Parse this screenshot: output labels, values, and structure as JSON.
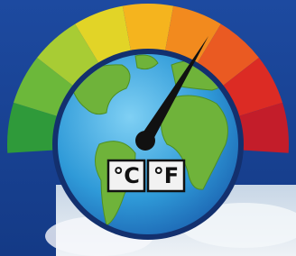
{
  "labels": {
    "celsius": "°C",
    "fahrenheit": "°F"
  }
}
